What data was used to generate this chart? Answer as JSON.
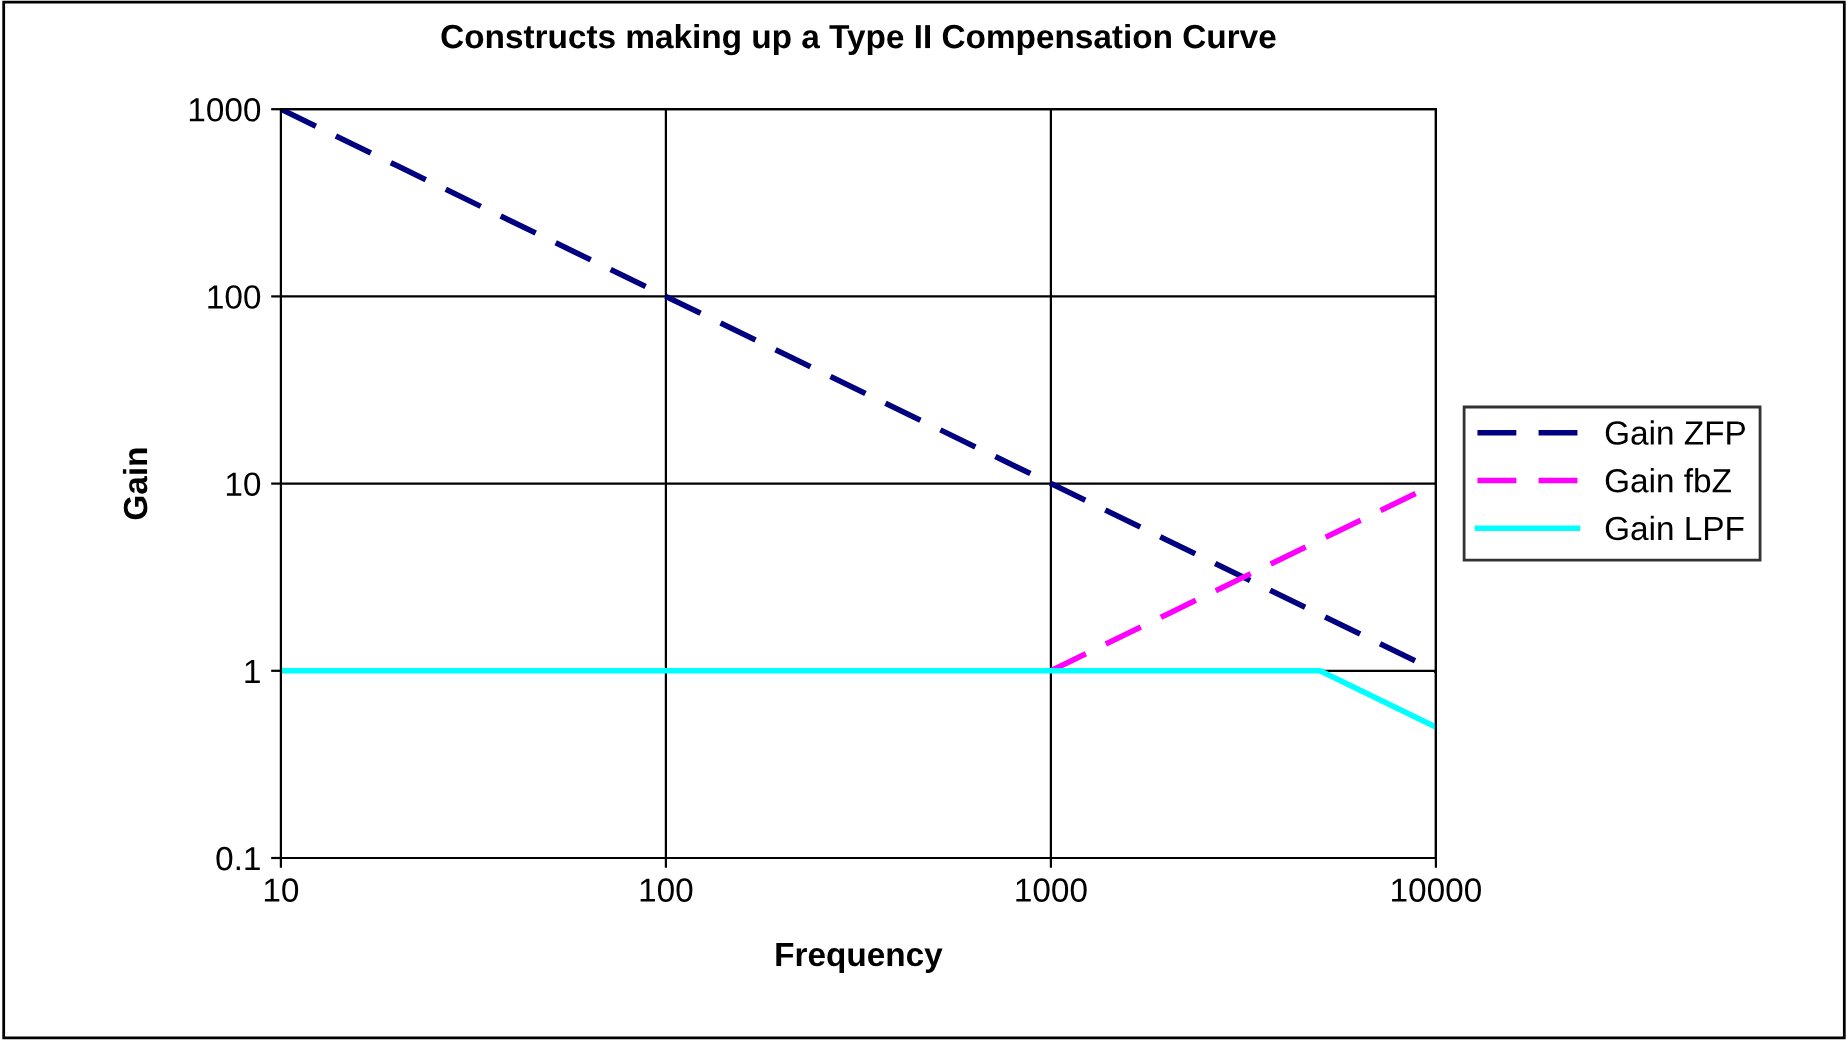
{
  "chart_data": {
    "type": "line",
    "title": "Constructs making up a Type II Compensation Curve",
    "xlabel": "Frequency",
    "ylabel": "Gain",
    "x": [
      10,
      20,
      50,
      100,
      200,
      500,
      1000,
      2000,
      5000,
      10000
    ],
    "series": [
      {
        "name": "Gain ZFP",
        "color": "#000080",
        "line_style": "dashed",
        "values": [
          1000,
          500,
          200,
          100,
          50,
          20,
          10,
          5,
          2,
          1
        ]
      },
      {
        "name": "Gain fbZ",
        "color": "#ff00ff",
        "line_style": "dashed",
        "values": [
          null,
          null,
          null,
          null,
          null,
          null,
          1,
          2,
          5,
          10
        ]
      },
      {
        "name": "Gain LPF",
        "color": "#00ffff",
        "line_style": "solid",
        "values": [
          1,
          1,
          1,
          1,
          1,
          1,
          1,
          1,
          1,
          0.5
        ]
      }
    ],
    "log": "xy",
    "xlim": [
      10,
      10000
    ],
    "xticks": [
      10,
      100,
      1000,
      10000
    ],
    "ylim": [
      0.1,
      1000
    ],
    "yticks": [
      0.1,
      1,
      10,
      100,
      1000
    ],
    "grid": true,
    "legend": "right",
    "marker": "none"
  }
}
